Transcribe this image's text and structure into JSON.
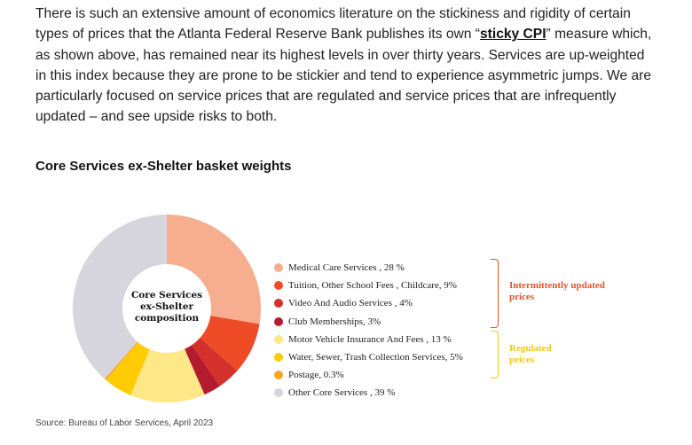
{
  "paragraph": {
    "before_link": "There is such an extensive amount of economics literature on the stickiness and rigidity of certain types of prices that the Atlanta Federal Reserve Bank publishes its own “",
    "link_text": "sticky CPI",
    "after_link": "” measure which, as shown above, has remained near its highest levels in over thirty years. Services are up-weighted in this index because they are prone to be stickier and tend to experience asymmetric jumps. We are particularly focused on service prices that are regulated and service prices that are infrequently updated – and see upside risks to both."
  },
  "source": "Source: Bureau of Labor Services, April 2023",
  "chart_data": {
    "type": "pie",
    "style": "donut",
    "title": "Core Services ex-Shelter basket weights",
    "center_label": [
      "Core Services",
      "ex-Shelter",
      "composition"
    ],
    "slices": [
      {
        "label": "Medical Care Services , 28 %",
        "value": 28,
        "color": "#F7AE8E"
      },
      {
        "label": "Tuition, Other School Fees , Childcare, 9%",
        "value": 9,
        "color": "#EE4B26"
      },
      {
        "label": "Video And Audio Services , 4%",
        "value": 4,
        "color": "#D4302C"
      },
      {
        "label": "Club Memberships, 3%",
        "value": 3,
        "color": "#B51B2E"
      },
      {
        "label": "Motor Vehicle Insurance And Fees , 13 %",
        "value": 13,
        "color": "#FDE787"
      },
      {
        "label": "Water, Sewer, Trash Collection Services, 5%",
        "value": 5,
        "color": "#FFCB05"
      },
      {
        "label": "Postage, 0.3%",
        "value": 0.3,
        "color": "#F5A623"
      },
      {
        "label": "Other Core Services , 39 %",
        "value": 39,
        "color": "#D6D5DD"
      }
    ],
    "groups": [
      {
        "label": "Intermittently updated prices",
        "color": "#E2532C"
      },
      {
        "label": "Regulated prices",
        "color": "#F5C518"
      }
    ]
  }
}
